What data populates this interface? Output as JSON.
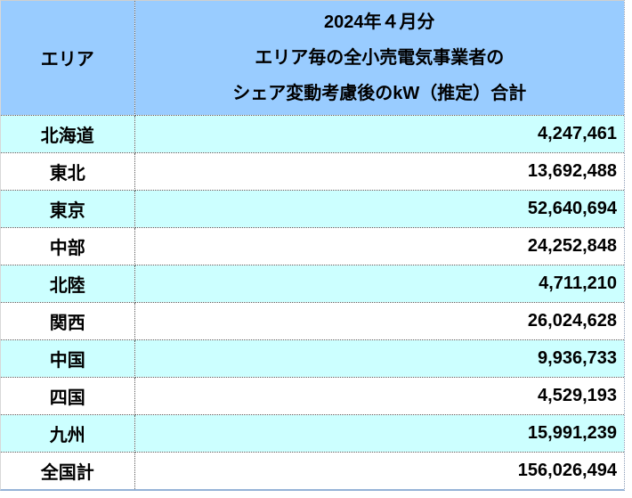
{
  "table": {
    "header": {
      "area_label": "エリア",
      "period_line": "2024年４月分",
      "desc_line1": "エリア毎の全小売電気事業者の",
      "desc_line2": "シェア変動考慮後のkW（推定）合計"
    },
    "rows": [
      {
        "area": "北海道",
        "value": "4,247,461"
      },
      {
        "area": "東北",
        "value": "13,692,488"
      },
      {
        "area": "東京",
        "value": "52,640,694"
      },
      {
        "area": "中部",
        "value": "24,252,848"
      },
      {
        "area": "北陸",
        "value": "4,711,210"
      },
      {
        "area": "関西",
        "value": "26,024,628"
      },
      {
        "area": "中国",
        "value": "9,936,733"
      },
      {
        "area": "四国",
        "value": "4,529,193"
      },
      {
        "area": "九州",
        "value": "15,991,239"
      },
      {
        "area": "全国計",
        "value": "156,026,494"
      }
    ]
  },
  "colors": {
    "header_bg": "#99CCFF",
    "stripe_bg": "#CCFFFF",
    "plain_bg": "#FFFFFF",
    "bottom_rule": "#95B3D7",
    "text": "#000000"
  },
  "chart_data": {
    "type": "table",
    "title": "2024年４月分 エリア毎の全小売電気事業者のシェア変動考慮後のkW（推定）合計",
    "columns": [
      "エリア",
      "2024年４月分 エリア毎の全小売電気事業者のシェア変動考慮後のkW（推定）合計"
    ],
    "categories": [
      "北海道",
      "東北",
      "東京",
      "中部",
      "北陸",
      "関西",
      "中国",
      "四国",
      "九州",
      "全国計"
    ],
    "values": [
      4247461,
      13692488,
      52640694,
      24252848,
      4711210,
      26024628,
      9936733,
      4529193,
      15991239,
      156026494
    ],
    "notes_layout": "striped rows (cyan/white), bold black text, dotted cell borders, header light blue"
  }
}
